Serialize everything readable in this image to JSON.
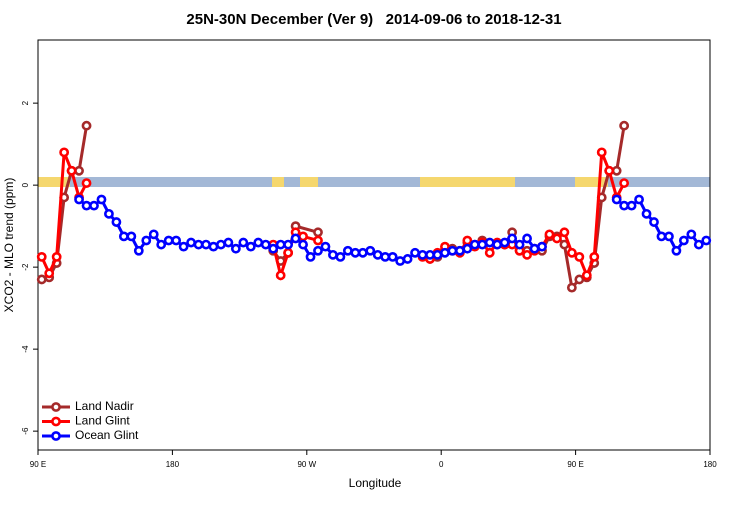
{
  "chart_data": {
    "type": "line",
    "title": "25N-30N December (Ver 9)   2014-09-06 to 2018-12-31",
    "x_label": "Longitude",
    "y_label": "XCO2 - MLO trend (ppm)",
    "xlim": [
      90,
      540
    ],
    "ylim": [
      -6.46,
      3.54
    ],
    "xticks": [
      {
        "value": 90,
        "label": "90 E"
      },
      180,
      {
        "value": 270,
        "label": "90 W"
      },
      {
        "value": 360,
        "label": "0"
      },
      {
        "value": 450,
        "label": "90 E"
      },
      {
        "value": 540,
        "label": "180"
      }
    ],
    "yticks": [
      -6,
      -4,
      -2,
      0,
      2
    ],
    "legend": "bottomleft",
    "series": [
      {
        "name": "Land Nadir",
        "color": "#a52a2a",
        "x": [
          92.5,
          97.5,
          102.5,
          107.5,
          112.5,
          117.5,
          122.5,
          185,
          247.5,
          252.5,
          257.5,
          262.5,
          277.5,
          310,
          352.5,
          357.5,
          362.5,
          367.5,
          372.5,
          377.5,
          382.5,
          387.5,
          392.5,
          397.5,
          402.5,
          407.5,
          412.5,
          417.5,
          422.5,
          427.5,
          432.5,
          437.5,
          442.5,
          447.5,
          452.5,
          457.5,
          462.5,
          467.5,
          472.5,
          477.5,
          482.5
        ],
        "values": [
          -2.3,
          -2.25,
          -1.9,
          -0.3,
          0.35,
          0.35,
          1.45,
          null,
          -1.6,
          -1.85,
          -1.65,
          -1.0,
          -1.15,
          null,
          -1.8,
          -1.75,
          -1.6,
          -1.55,
          -1.6,
          -1.4,
          -1.45,
          -1.35,
          -1.5,
          -1.45,
          -1.45,
          -1.15,
          -1.6,
          -1.6,
          -1.55,
          -1.6,
          -1.25,
          -1.25,
          -1.45,
          -2.5,
          -2.3,
          -2.25,
          -1.9,
          -0.3,
          0.35,
          0.35,
          1.45
        ]
      },
      {
        "name": "Land Glint",
        "color": "#ff0000",
        "x": [
          92.5,
          97.5,
          102.5,
          107.5,
          112.5,
          117.5,
          122.5,
          185,
          247.5,
          252.5,
          257.5,
          262.5,
          267.5,
          277.5,
          310,
          347.5,
          352.5,
          357.5,
          362.5,
          367.5,
          372.5,
          377.5,
          382.5,
          387.5,
          392.5,
          397.5,
          402.5,
          407.5,
          412.5,
          417.5,
          422.5,
          427.5,
          432.5,
          437.5,
          442.5,
          447.5,
          452.5,
          457.5,
          462.5,
          467.5,
          472.5,
          477.5,
          482.5
        ],
        "values": [
          -1.75,
          -2.15,
          -1.75,
          0.8,
          0.35,
          -0.3,
          0.05,
          null,
          -1.45,
          -2.2,
          -1.65,
          -1.15,
          -1.25,
          -1.35,
          null,
          -1.75,
          -1.8,
          -1.65,
          -1.5,
          -1.6,
          -1.65,
          -1.35,
          -1.5,
          -1.4,
          -1.65,
          -1.4,
          -1.45,
          -1.45,
          -1.6,
          -1.7,
          -1.6,
          -1.5,
          -1.2,
          -1.3,
          -1.15,
          -1.65,
          -1.75,
          -2.2,
          -1.75,
          0.8,
          0.35,
          -0.3,
          0.05
        ]
      },
      {
        "name": "Ocean Glint",
        "color": "#0000ff",
        "x": [
          117.5,
          122.5,
          127.5,
          132.5,
          137.5,
          142.5,
          147.5,
          152.5,
          157.5,
          162.5,
          167.5,
          172.5,
          177.5,
          182.5,
          187.5,
          192.5,
          197.5,
          202.5,
          207.5,
          212.5,
          217.5,
          222.5,
          227.5,
          232.5,
          237.5,
          242.5,
          247.5,
          252.5,
          257.5,
          262.5,
          267.5,
          272.5,
          277.5,
          282.5,
          287.5,
          292.5,
          297.5,
          302.5,
          307.5,
          312.5,
          317.5,
          322.5,
          327.5,
          332.5,
          337.5,
          342.5,
          347.5,
          352.5,
          357.5,
          362.5,
          367.5,
          372.5,
          377.5,
          382.5,
          387.5,
          392.5,
          397.5,
          402.5,
          407.5,
          412.5,
          417.5,
          422.5,
          427.5,
          450,
          477.5,
          482.5,
          487.5,
          492.5,
          497.5,
          502.5,
          507.5,
          512.5,
          517.5,
          522.5,
          527.5,
          532.5,
          537.5
        ],
        "values": [
          -0.35,
          -0.5,
          -0.5,
          -0.35,
          -0.7,
          -0.9,
          -1.25,
          -1.25,
          -1.6,
          -1.35,
          -1.2,
          -1.45,
          -1.35,
          -1.35,
          -1.5,
          -1.4,
          -1.45,
          -1.45,
          -1.5,
          -1.45,
          -1.4,
          -1.55,
          -1.4,
          -1.5,
          -1.4,
          -1.45,
          -1.55,
          -1.45,
          -1.45,
          -1.3,
          -1.45,
          -1.75,
          -1.6,
          -1.5,
          -1.7,
          -1.75,
          -1.6,
          -1.65,
          -1.65,
          -1.6,
          -1.7,
          -1.75,
          -1.75,
          -1.85,
          -1.8,
          -1.65,
          -1.7,
          -1.7,
          -1.7,
          -1.65,
          -1.6,
          -1.6,
          -1.55,
          -1.45,
          -1.45,
          -1.4,
          -1.45,
          -1.4,
          -1.3,
          -1.45,
          -1.3,
          -1.55,
          -1.5,
          null,
          -0.35,
          -0.5,
          -0.5,
          -0.35,
          -0.7,
          -0.9,
          -1.25,
          -1.25,
          -1.6,
          -1.35,
          -1.2,
          -1.45,
          -1.35
        ]
      }
    ]
  }
}
